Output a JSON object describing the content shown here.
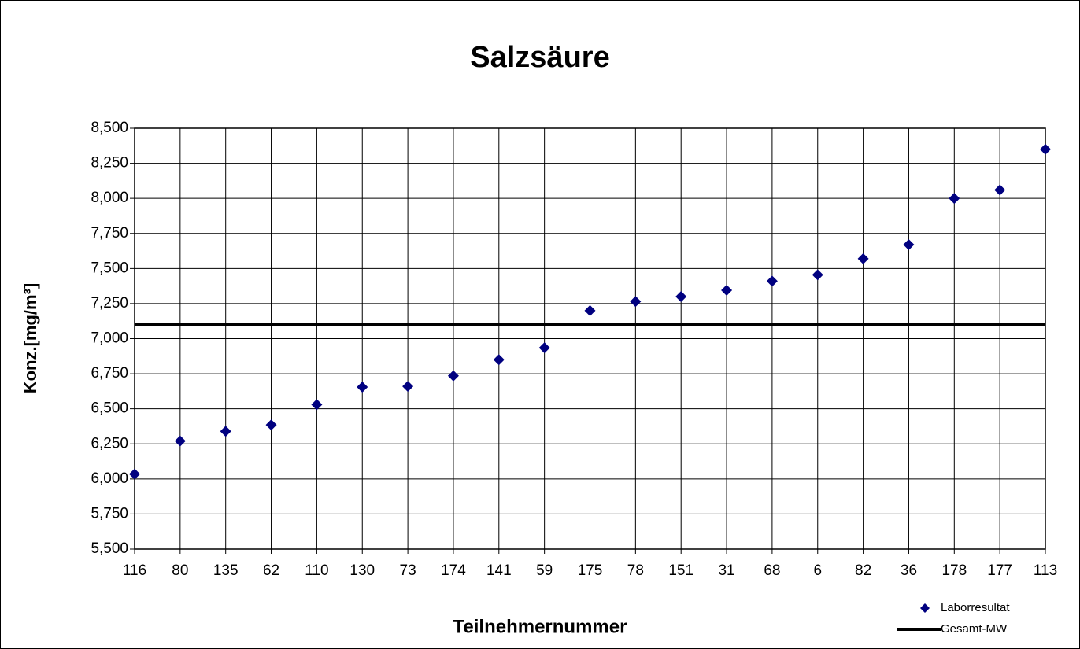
{
  "chart_data": {
    "type": "scatter",
    "title": "Salzsäure",
    "x_label": "Teilnehmernummer",
    "y_label": "Konz.[mg/m³]",
    "categories": [
      "116",
      "80",
      "135",
      "62",
      "110",
      "130",
      "73",
      "174",
      "141",
      "59",
      "175",
      "78",
      "151",
      "31",
      "68",
      "6",
      "82",
      "36",
      "178",
      "177",
      "113"
    ],
    "series": [
      {
        "name": "Laborresultat",
        "color": "#000080",
        "values": [
          6035,
          6270,
          6340,
          6385,
          6530,
          6655,
          6660,
          6735,
          6850,
          6935,
          7200,
          7265,
          7300,
          7345,
          7410,
          7455,
          7570,
          7670,
          8000,
          8060,
          8350
        ]
      }
    ],
    "mean": {
      "name": "Gesamt-MW",
      "value": 7100,
      "color": "#000000"
    },
    "ylim": [
      5500,
      8500
    ],
    "yticks": [
      {
        "value": 5500,
        "label": "5,500"
      },
      {
        "value": 5750,
        "label": "5,750"
      },
      {
        "value": 6000,
        "label": "6,000"
      },
      {
        "value": 6250,
        "label": "6,250"
      },
      {
        "value": 6500,
        "label": "6,500"
      },
      {
        "value": 6750,
        "label": "6,750"
      },
      {
        "value": 7000,
        "label": "7,000"
      },
      {
        "value": 7250,
        "label": "7,250"
      },
      {
        "value": 7500,
        "label": "7,500"
      },
      {
        "value": 7750,
        "label": "7,750"
      },
      {
        "value": 8000,
        "label": "8,000"
      },
      {
        "value": 8250,
        "label": "8,250"
      },
      {
        "value": 8500,
        "label": "8,500"
      }
    ],
    "grid": true,
    "legend": "bottom-right"
  }
}
